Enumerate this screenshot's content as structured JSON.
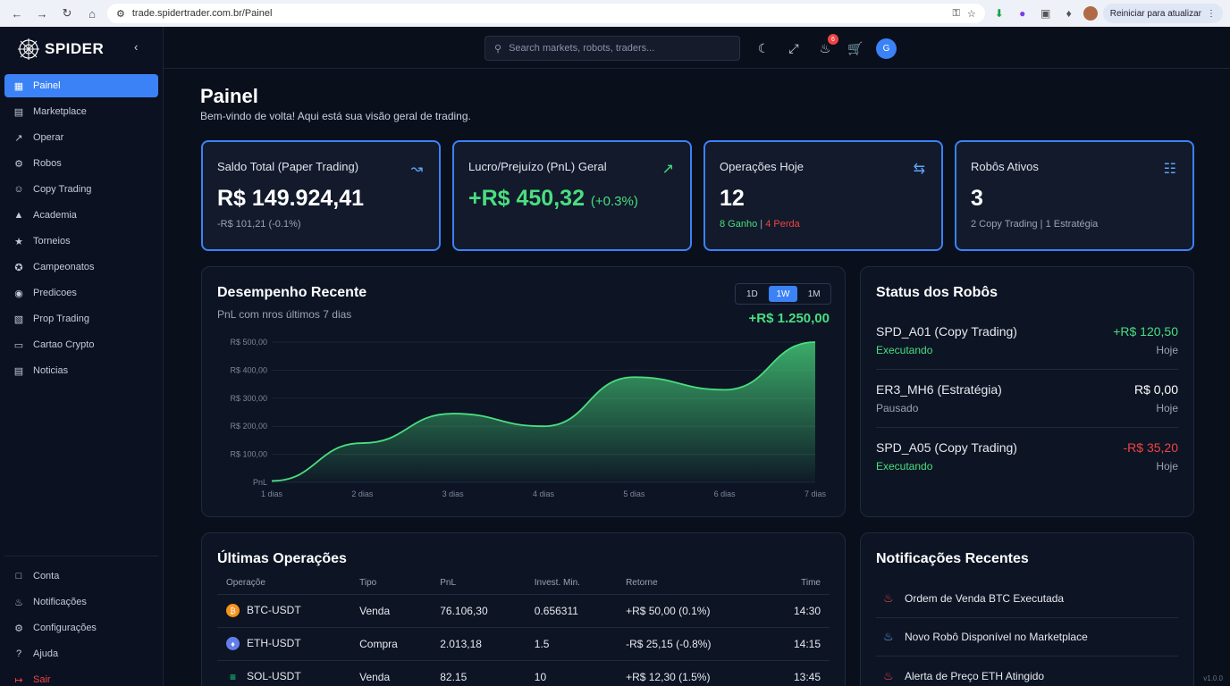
{
  "browser": {
    "url": "trade.spidertrader.com.br/Painel",
    "update_label": "Reiniciar para atualizar"
  },
  "sidebar": {
    "brand": "SPIDER",
    "items": [
      {
        "label": "Painel",
        "icon": "grid-icon"
      },
      {
        "label": "Marketplace",
        "icon": "store-icon"
      },
      {
        "label": "Operar",
        "icon": "trend-icon"
      },
      {
        "label": "Robos",
        "icon": "robot-icon"
      },
      {
        "label": "Copy Trading",
        "icon": "users-icon"
      },
      {
        "label": "Academia",
        "icon": "graduation-icon"
      },
      {
        "label": "Torneios",
        "icon": "trophy-icon"
      },
      {
        "label": "Campeonatos",
        "icon": "medal-icon"
      },
      {
        "label": "Predicoes",
        "icon": "target-icon"
      },
      {
        "label": "Prop Trading",
        "icon": "building-icon"
      },
      {
        "label": "Cartao Crypto",
        "icon": "card-icon"
      },
      {
        "label": "Noticias",
        "icon": "news-icon"
      }
    ],
    "bottom_items": [
      {
        "label": "Conta",
        "icon": "account-icon"
      },
      {
        "label": "Notificações",
        "icon": "bell-icon"
      },
      {
        "label": "Configurações",
        "icon": "gear-icon"
      },
      {
        "label": "Ajuda",
        "icon": "help-icon"
      },
      {
        "label": "Sair",
        "icon": "logout-icon"
      }
    ]
  },
  "topbar": {
    "search_placeholder": "Search markets, robots, traders...",
    "notification_count": "6",
    "avatar_initial": "G"
  },
  "page": {
    "title": "Painel",
    "subtitle": "Bem-vindo de volta! Aqui está sua visão geral de trading."
  },
  "cards": {
    "balance": {
      "label": "Saldo Total (Paper Trading)",
      "value": "R$ 149.924,41",
      "change": "-R$ 101,21 (-0.1%)"
    },
    "pnl": {
      "label": "Lucro/Prejuízo (PnL) Geral",
      "value": "+R$ 450,32",
      "pct": "(+0.3%)"
    },
    "ops": {
      "label": "Operações Hoje",
      "value": "12",
      "wins": "8 Ganho",
      "losses": "4 Perda"
    },
    "robots": {
      "label": "Robôs Ativos",
      "value": "3",
      "copy": "2 Copy Trading",
      "strategy": "1 Estratégia"
    }
  },
  "performance": {
    "title": "Desempenho Recente",
    "subtitle": "PnL com nros últimos 7 dias",
    "tabs": [
      "1D",
      "1W",
      "1M"
    ],
    "active_tab": "1W",
    "total": "+R$ 1.250,00"
  },
  "chart_data": {
    "type": "area",
    "x": [
      "1 dias",
      "2 dias",
      "3 dias",
      "4 dias",
      "5 dias",
      "6 dias",
      "7 dias"
    ],
    "y_ticks": [
      "PnL",
      "R$ 100,00",
      "R$ 200,00",
      "R$ 300,00",
      "R$ 400,00",
      "R$ 500,00"
    ],
    "values": [
      5,
      140,
      245,
      200,
      375,
      330,
      500
    ],
    "ylim": [
      0,
      500
    ],
    "color": "#4ade80"
  },
  "robot_status": {
    "title": "Status dos Robôs",
    "rows": [
      {
        "name": "SPD_A01 (Copy Trading)",
        "state": "Executando",
        "amount": "+R$ 120,50",
        "when": "Hoje",
        "kind": "pos"
      },
      {
        "name": "ER3_MH6 (Estratégia)",
        "state": "Pausado",
        "amount": "R$ 0,00",
        "when": "Hoje",
        "kind": "neutral"
      },
      {
        "name": "SPD_A05 (Copy Trading)",
        "state": "Executando",
        "amount": "-R$ 35,20",
        "when": "Hoje",
        "kind": "neg"
      }
    ]
  },
  "operations": {
    "title": "Últimas Operações",
    "columns": [
      "Operaçõe",
      "Tipo",
      "PnL",
      "Invest. Min.",
      "Retorne",
      "Time"
    ],
    "rows": [
      {
        "pair": "BTC-USDT",
        "coin": "btc-icon",
        "coin_color": "#f7931a",
        "type": "Venda",
        "pnl": "76.106,30",
        "invest": "0.656311",
        "ret": "+R$ 50,00 (0.1%)",
        "time": "14:30"
      },
      {
        "pair": "ETH-USDT",
        "coin": "eth-icon",
        "coin_color": "#627eea",
        "type": "Compra",
        "pnl": "2.013,18",
        "invest": "1.5",
        "ret": "-R$ 25,15 (-0.8%)",
        "time": "14:15"
      },
      {
        "pair": "SOL-USDT",
        "coin": "sol-icon",
        "coin_color": "#14f195",
        "type": "Venda",
        "pnl": "82.15",
        "invest": "10",
        "ret": "+R$ 12,30 (1.5%)",
        "time": "13:45"
      }
    ]
  },
  "notifications": {
    "title": "Notificações Recentes",
    "items": [
      {
        "text": "Ordem de Venda BTC Executada",
        "color": "#ef4444"
      },
      {
        "text": "Novo Robô Disponível no Marketplace",
        "color": "#60a5fa"
      },
      {
        "text": "Alerta de Preço ETH Atingido",
        "color": "#ef4444"
      }
    ]
  },
  "version": "v1.0.0"
}
